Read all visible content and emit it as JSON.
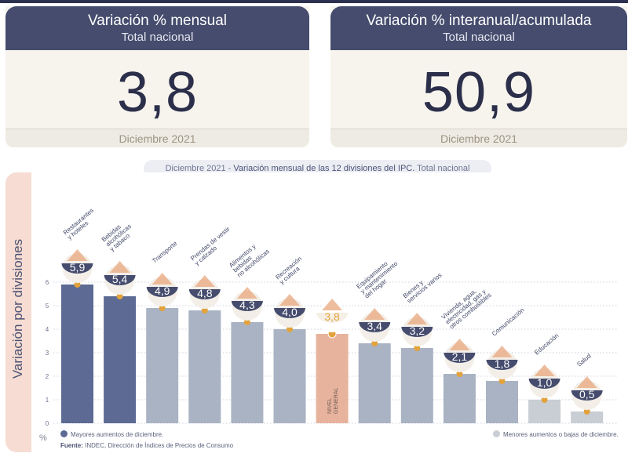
{
  "kpis": {
    "monthly": {
      "title": "Variación % mensual",
      "subtitle": "Total nacional",
      "value": "3,8",
      "period": "Diciembre 2021"
    },
    "annual": {
      "title": "Variación % interanual/acumulada",
      "subtitle": "Total nacional",
      "value": "50,9",
      "period": "Diciembre 2021"
    }
  },
  "chart_data": {
    "type": "bar",
    "title_prefix": "Diciembre 2021 - ",
    "title_strong": "Variación mensual de las 12 divisiones del IPC.",
    "title_suffix": " Total nacional",
    "ylabel": "Variación por divisiones",
    "unit": "%",
    "ylim": [
      0,
      6
    ],
    "yticks": [
      "0",
      "1",
      "2",
      "3",
      "4",
      "5",
      "6"
    ],
    "categories": [
      [
        "Restaurantes",
        "y hoteles"
      ],
      [
        "Bebidas",
        "alcohólicas",
        "y tabaco"
      ],
      [
        "Transporte"
      ],
      [
        "Prendas de vestir",
        "y calzado"
      ],
      [
        "Alimentos y",
        "bebidas",
        "no alcohólicas"
      ],
      [
        "Recreación",
        "y cultura"
      ],
      [],
      [
        "Equipamiento",
        "y mantenimiento",
        "del hogar"
      ],
      [
        "Bienes y",
        "servicios varios"
      ],
      [
        "Vivienda, agua,",
        "electricidad, gas y",
        "otros combustibles"
      ],
      [
        "Comunicación"
      ],
      [
        "Educación"
      ],
      [
        "Salud"
      ]
    ],
    "values": [
      5.9,
      5.4,
      4.9,
      4.8,
      4.3,
      4.0,
      3.8,
      3.4,
      3.2,
      2.1,
      1.8,
      1.0,
      0.5
    ],
    "value_labels": [
      "5,9",
      "5,4",
      "4,9",
      "4,8",
      "4,3",
      "4,0",
      "3,8",
      "3,4",
      "3,2",
      "2,1",
      "1,8",
      "1,0",
      "0,5"
    ],
    "bar_kinds": [
      "mayor",
      "mayor",
      "neutral",
      "neutral",
      "neutral",
      "neutral",
      "general",
      "neutral",
      "neutral",
      "neutral",
      "neutral",
      "menor",
      "menor"
    ],
    "general_bar_label": [
      "NIVEL",
      "GENERAL"
    ],
    "icons": [
      "restaurant-icon",
      "beverage-icon",
      "bus-icon",
      "clothing-icon",
      "food-icon",
      "recreation-icon",
      "basket-icon",
      "appliance-icon",
      "grooming-icon",
      "lightbulb-icon",
      "phone-icon",
      "book-icon",
      "health-cross-icon"
    ],
    "colors": {
      "mayor": "#5c6a94",
      "neutral": "#a9b3c3",
      "general": "#e8b39d",
      "menor": "#c9cdd4",
      "badge": "#454c6d",
      "badge_general": "#f5efe5",
      "marker": "#e2a33d",
      "grid": "#bfc5d6"
    },
    "legend": {
      "mayor": "Mayores aumentos de diciembre.",
      "menor": "Menores aumentos o bajas de diciembre."
    },
    "source_label": "Fuente:",
    "source_text": " INDEC, Dirección de Índices de Precios de Consumo"
  }
}
